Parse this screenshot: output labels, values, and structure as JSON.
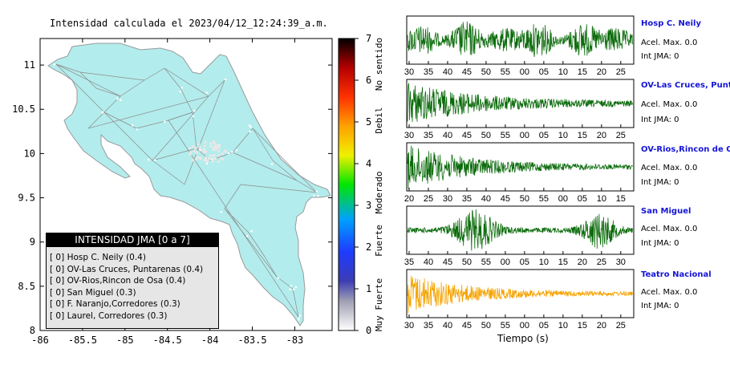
{
  "map": {
    "title": "Intensidad calculada el 2023/04/12_12:24:39_a.m.",
    "x_ticks": [
      "-86",
      "-85.5",
      "-85",
      "-84.5",
      "-84",
      "-83.5",
      "-83"
    ],
    "y_ticks": [
      "11",
      "10.5",
      "10",
      "9.5",
      "9",
      "8.5",
      "8"
    ],
    "colorbar": {
      "ticks": [
        "7",
        "6",
        "5",
        "4",
        "3",
        "2",
        "1",
        "0"
      ],
      "labels": [
        "Muy Fuerte",
        "Fuerte",
        "Moderado",
        "Debil",
        "No sentido"
      ]
    },
    "legend": {
      "header": "INTENSIDAD JMA [0 a 7]",
      "rows": [
        {
          "level": "[ 0]",
          "name": "Hosp C. Neily (0.4)"
        },
        {
          "level": "[ 0]",
          "name": "OV-Las Cruces, Puntarenas (0.4)"
        },
        {
          "level": "[ 0]",
          "name": "OV-Rios,Rincon de Osa (0.4)"
        },
        {
          "level": "[ 0]",
          "name": "San Miguel (0.3)"
        },
        {
          "level": "[ 0]",
          "name": "F. Naranjo,Corredores (0.3)"
        },
        {
          "level": "[ 0]",
          "name": "Laurel, Corredores (0.3)"
        }
      ]
    },
    "colors": {
      "land": "#b3ecec",
      "road": "#8c8c8c"
    }
  },
  "stations": [
    {
      "name": "Hosp C. Neily",
      "acel": "Acel. Max. 0.0",
      "int": "Int JMA: 0",
      "ticks": [
        "30",
        "35",
        "40",
        "45",
        "50",
        "55",
        "00",
        "05",
        "10",
        "15",
        "20",
        "25"
      ],
      "color": "#0b6b0b"
    },
    {
      "name": "OV-Las Cruces, Puntar",
      "acel": "Acel. Max. 0.0",
      "int": "Int JMA: 0",
      "ticks": [
        "30",
        "35",
        "40",
        "45",
        "50",
        "55",
        "00",
        "05",
        "10",
        "15",
        "20",
        "25"
      ],
      "color": "#0b6b0b"
    },
    {
      "name": "OV-Rios,Rincon de Osa",
      "acel": "Acel. Max. 0.0",
      "int": "Int JMA: 0",
      "ticks": [
        "20",
        "25",
        "30",
        "35",
        "40",
        "45",
        "50",
        "55",
        "00",
        "05",
        "10",
        "15"
      ],
      "color": "#0b6b0b"
    },
    {
      "name": "San Miguel",
      "acel": "Acel. Max. 0.0",
      "int": "Int JMA: 0",
      "ticks": [
        "35",
        "40",
        "45",
        "50",
        "55",
        "00",
        "05",
        "10",
        "15",
        "20",
        "25",
        "30"
      ],
      "color": "#0b6b0b"
    },
    {
      "name": "Teatro Nacional",
      "acel": "Acel. Max. 0.0",
      "int": "Int JMA: 0",
      "ticks": [
        "30",
        "35",
        "40",
        "45",
        "50",
        "55",
        "00",
        "05",
        "10",
        "15",
        "20",
        "25"
      ],
      "color": "#f5a300"
    }
  ],
  "xlabel": "Tiempo (s)",
  "chart_data": [
    {
      "type": "scatter",
      "title": "Intensidad calculada el 2023/04/12_12:24:39_a.m.",
      "xlim": [
        -86,
        -82.6
      ],
      "ylim": [
        8,
        11.3
      ],
      "x_ticks": [
        -86,
        -85.5,
        -85,
        -84.5,
        -84,
        -83.5,
        -83
      ],
      "y_ticks": [
        8,
        8.5,
        9,
        9.5,
        10,
        10.5,
        11
      ],
      "colorbar": {
        "min": 0,
        "max": 7,
        "labels": [
          "No sentido",
          "Debil",
          "Moderado",
          "Fuerte",
          "Muy Fuerte"
        ]
      },
      "series": [
        {
          "name": "INTENSIDAD JMA [0 a 7]",
          "values": [
            0.4,
            0.4,
            0.4,
            0.3,
            0.3,
            0.3
          ]
        }
      ]
    },
    {
      "type": "line",
      "series": [
        {
          "name": "Hosp C. Neily",
          "envelope": "continuous"
        }
      ]
    },
    {
      "type": "line",
      "series": [
        {
          "name": "OV-Las Cruces, Puntar",
          "envelope": "decaying"
        }
      ]
    },
    {
      "type": "line",
      "series": [
        {
          "name": "OV-Rios,Rincon de Osa",
          "envelope": "decaying"
        }
      ]
    },
    {
      "type": "line",
      "series": [
        {
          "name": "San Miguel",
          "envelope": "bursts"
        }
      ]
    },
    {
      "type": "line",
      "series": [
        {
          "name": "Teatro Nacional",
          "envelope": "decaying"
        }
      ]
    }
  ]
}
